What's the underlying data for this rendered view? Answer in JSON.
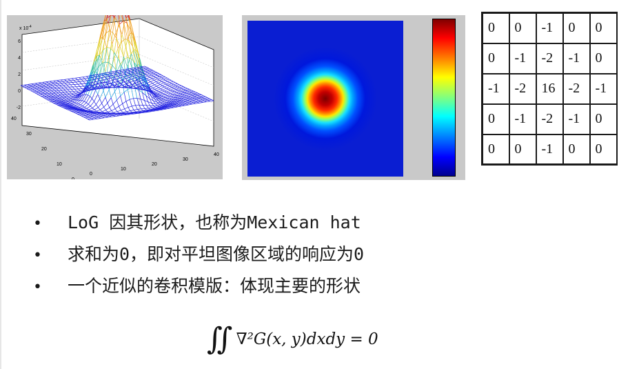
{
  "surface_plot": {
    "y_scale_label": "x 10",
    "y_scale_exponent": "-4",
    "z_ticks": [
      "6",
      "4",
      "2",
      "0",
      "-2"
    ],
    "left_axis_ticks": [
      "40",
      "30",
      "20",
      "10",
      "0"
    ],
    "right_axis_ticks": [
      "0",
      "10",
      "20",
      "30",
      "40"
    ],
    "mesh_color": "#2020e0"
  },
  "heatmap": {
    "colormap": "jet",
    "background": "#0a1ed2"
  },
  "kernel": {
    "rows": [
      [
        "0",
        "0",
        "-1",
        "0",
        "0"
      ],
      [
        "0",
        "-1",
        "-2",
        "-1",
        "0"
      ],
      [
        "-1",
        "-2",
        "16",
        "-2",
        "-1"
      ],
      [
        "0",
        "-1",
        "-2",
        "-1",
        "0"
      ],
      [
        "0",
        "0",
        "-1",
        "0",
        "0"
      ]
    ]
  },
  "bullets": [
    {
      "marker": "•",
      "text": "LoG 因其形状，也称为Mexican hat"
    },
    {
      "marker": "•",
      "text": "求和为0，即对平坦图像区域的响应为0"
    },
    {
      "marker": "•",
      "text": "一个近似的卷积模版：体现主要的形状"
    }
  ],
  "formula": {
    "integral": "∬",
    "expression": "∇²G(x, y)dxdy = 0"
  }
}
